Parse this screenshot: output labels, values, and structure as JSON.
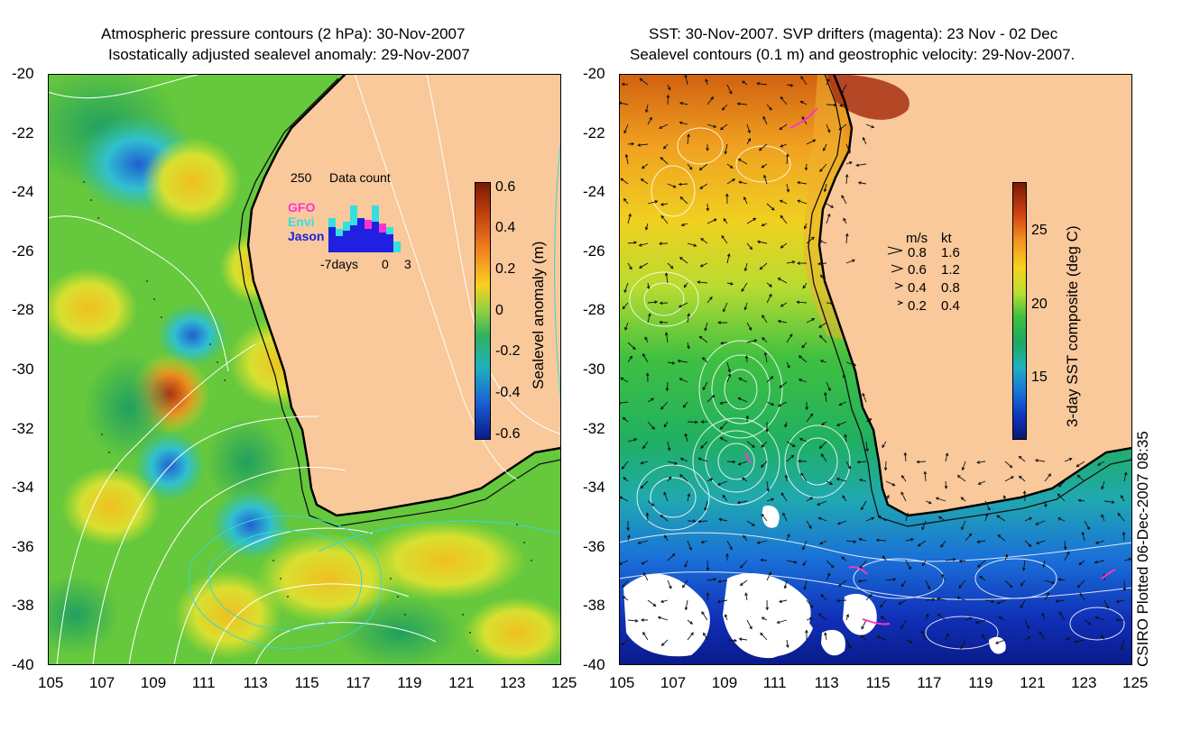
{
  "left_panel": {
    "title_line1": "Atmospheric pressure contours (2 hPa): 30-Nov-2007",
    "title_line2": "Isostatically adjusted sealevel anomaly: 29-Nov-2007",
    "colorbar": {
      "label": "Sealevel anomaly (m)",
      "ticks": [
        "0.6",
        "0.4",
        "0.2",
        "0",
        "-0.2",
        "-0.4",
        "-0.6"
      ]
    },
    "inset": {
      "top_value": "250",
      "title": "Data count",
      "legend": [
        {
          "name": "GFO",
          "color": "#ff33cc"
        },
        {
          "name": "Envi",
          "color": "#33e0e0"
        },
        {
          "name": "Jason",
          "color": "#2020e0"
        }
      ],
      "x_left": "-7days",
      "x_mid": "0",
      "x_right": "3"
    }
  },
  "right_panel": {
    "title_line1": "SST: 30-Nov-2007. SVP drifters (magenta): 23 Nov - 02 Dec",
    "title_line2": "Sealevel contours (0.1 m) and geostrophic velocity: 29-Nov-2007.",
    "colorbar": {
      "label": "3-day SST composite (deg C)",
      "ticks": [
        "25",
        "20",
        "15"
      ]
    },
    "speed_key": {
      "header_ms": "m/s",
      "header_kt": "kt",
      "rows": [
        {
          "ms": "0.8",
          "kt": "1.6"
        },
        {
          "ms": "0.6",
          "kt": "1.2"
        },
        {
          "ms": "0.4",
          "kt": "0.8"
        },
        {
          "ms": "0.2",
          "kt": "0.4"
        }
      ]
    }
  },
  "axes": {
    "y_ticks": [
      "-20",
      "-22",
      "-24",
      "-26",
      "-28",
      "-30",
      "-32",
      "-34",
      "-36",
      "-38",
      "-40"
    ],
    "x_ticks": [
      "105",
      "107",
      "109",
      "111",
      "113",
      "115",
      "117",
      "119",
      "121",
      "123",
      "125"
    ]
  },
  "credit": "CSIRO Plotted 06-Dec-2007 08:35",
  "colors": {
    "land": "#f9c89b",
    "ocean_green": "#5cc23a",
    "contour_white": "#ffffff",
    "contour_cyan": "#3ad6d6",
    "drifter_magenta": "#ff33cc"
  }
}
